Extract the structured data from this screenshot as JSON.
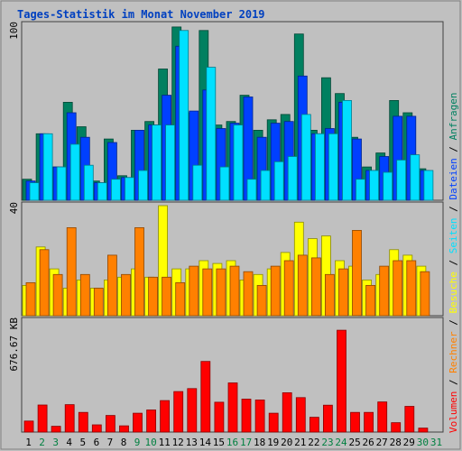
{
  "chart_data": {
    "type": "bar",
    "title": "Tages-Statistik im Monat November 2019",
    "days": [
      "1",
      "2",
      "3",
      "4",
      "5",
      "6",
      "7",
      "8",
      "9",
      "10",
      "11",
      "12",
      "13",
      "14",
      "15",
      "16",
      "17",
      "18",
      "19",
      "20",
      "21",
      "22",
      "23",
      "24",
      "25",
      "26",
      "27",
      "28",
      "29",
      "30",
      "31"
    ],
    "weekend_days": [
      "2",
      "3",
      "9",
      "10",
      "16",
      "17",
      "23",
      "24",
      "30",
      "31"
    ],
    "panels": [
      {
        "ymax_label": "100",
        "ymax": 100,
        "series": [
          {
            "name": "Anfragen",
            "color": "#008060",
            "values": [
              12,
              38,
              19,
              56,
              42,
              11,
              35,
              14,
              40,
              45,
              75,
              99,
              50,
              97,
              43,
              45,
              60,
              40,
              46,
              49,
              95,
              40,
              70,
              61,
              36,
              19,
              27,
              57,
              50,
              18,
              null
            ]
          },
          {
            "name": "Dateien",
            "color": "#0040ff",
            "values": [
              11,
              38,
              19,
              50,
              36,
              10,
              33,
              13,
              40,
              43,
              60,
              88,
              51,
              63,
              41,
              44,
              59,
              36,
              44,
              45,
              71,
              38,
              41,
              56,
              35,
              17,
              25,
              48,
              48,
              17,
              null
            ]
          },
          {
            "name": "Seiten",
            "color": "#00e0ff",
            "values": [
              10,
              38,
              19,
              32,
              20,
              10,
              12,
              13,
              17,
              43,
              43,
              97,
              20,
              76,
              19,
              43,
              12,
              17,
              22,
              25,
              49,
              38,
              38,
              57,
              12,
              17,
              16,
              23,
              26,
              17,
              null
            ]
          }
        ]
      },
      {
        "ymax_label": "40",
        "ymax": 40,
        "series": [
          {
            "name": "Besuche",
            "color": "#ffff00",
            "values": [
              11,
              25,
              17,
              10,
              13,
              10,
              13,
              14,
              17,
              14,
              41,
              17,
              17,
              20,
              19,
              20,
              13,
              15,
              17,
              23,
              34,
              28,
              29,
              20,
              18,
              13,
              15,
              24,
              22,
              18,
              null
            ]
          },
          {
            "name": "Rechner",
            "color": "#ff8000",
            "values": [
              12,
              24,
              15,
              32,
              15,
              10,
              22,
              15,
              32,
              14,
              14,
              12,
              18,
              17,
              17,
              18,
              16,
              11,
              18,
              20,
              22,
              21,
              15,
              17,
              31,
              11,
              18,
              20,
              20,
              16,
              null
            ]
          }
        ]
      },
      {
        "ymax_label": "676.67 KB",
        "ymax": 676.67,
        "series": [
          {
            "name": "Volumen",
            "color": "#ff0000",
            "values": [
              67,
              165,
              35,
              167,
              120,
              44,
              101,
              38,
              115,
              135,
              192,
              247,
              265,
              431,
              182,
              300,
              201,
              196,
              115,
              240,
              210,
              90,
              164,
              621,
              120,
              120,
              184,
              57,
              157,
              24,
              null
            ]
          }
        ]
      }
    ],
    "legend": [
      "Volumen",
      "Rechner",
      "Besuche",
      "Seiten",
      "Dateien",
      "Anfragen"
    ],
    "legend_separator": " / "
  }
}
